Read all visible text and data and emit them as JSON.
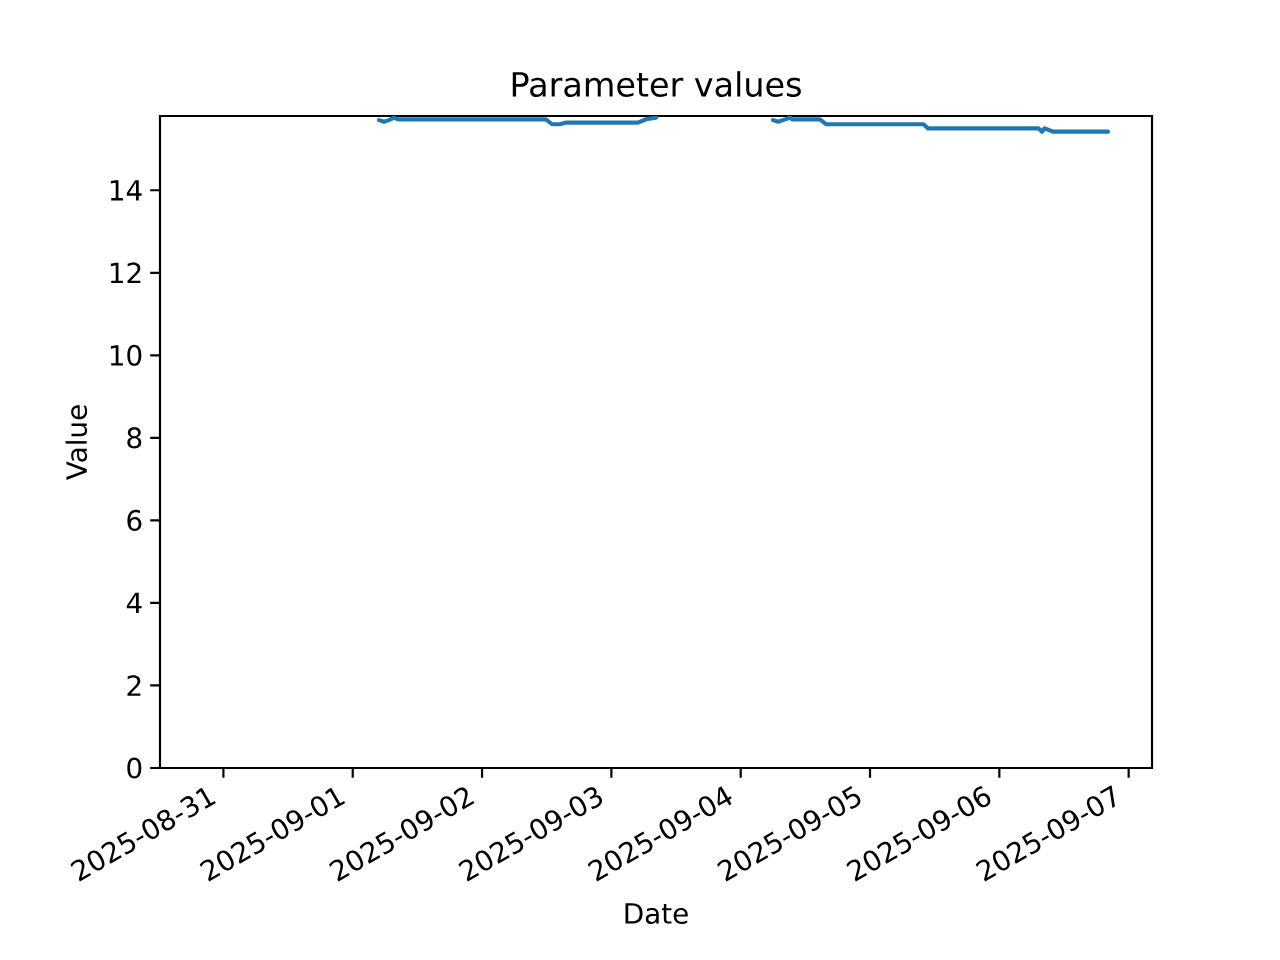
{
  "chart_data": {
    "type": "line",
    "title": "Parameter values",
    "xlabel": "Date",
    "ylabel": "Value",
    "x": [
      "2025-09-01T04:53",
      "2025-09-01T05:48",
      "2025-09-01T06:44",
      "2025-09-01T07:40",
      "2025-09-01T08:24",
      "2025-09-02T11:52",
      "2025-09-02T12:59",
      "2025-09-02T14:28",
      "2025-09-02T15:35",
      "2025-09-03T04:57",
      "2025-09-03T06:26",
      "2025-09-03T08:17",
      "2025-09-03T19:03",
      "2025-09-04T06:00",
      "2025-09-04T06:56",
      "2025-09-04T07:51",
      "2025-09-04T09:10",
      "2025-09-04T09:31",
      "2025-09-04T14:43",
      "2025-09-04T15:50",
      "2025-09-05T09:55",
      "2025-09-05T10:46",
      "2025-09-06T07:17",
      "2025-09-06T07:55",
      "2025-09-06T08:24",
      "2025-09-06T10:02",
      "2025-09-06T20:10"
    ],
    "series": [
      {
        "color": "#1f77b4",
        "values": [
          15.7,
          15.66,
          15.7,
          15.76,
          15.72,
          15.72,
          15.6,
          15.6,
          15.64,
          15.64,
          15.72,
          15.76,
          null,
          15.7,
          15.66,
          15.7,
          15.76,
          15.72,
          15.72,
          15.6,
          15.6,
          15.5,
          15.5,
          15.42,
          15.5,
          15.42,
          15.42
        ]
      }
    ],
    "xlim": [
      "2025-08-30T12:14",
      "2025-09-07T04:20"
    ],
    "xticks": [
      "2025-08-31",
      "2025-09-01",
      "2025-09-02",
      "2025-09-03",
      "2025-09-04",
      "2025-09-05",
      "2025-09-06",
      "2025-09-07"
    ],
    "ylim": [
      0,
      15.8
    ],
    "yticks": [
      0,
      2,
      4,
      6,
      8,
      10,
      12,
      14
    ]
  }
}
